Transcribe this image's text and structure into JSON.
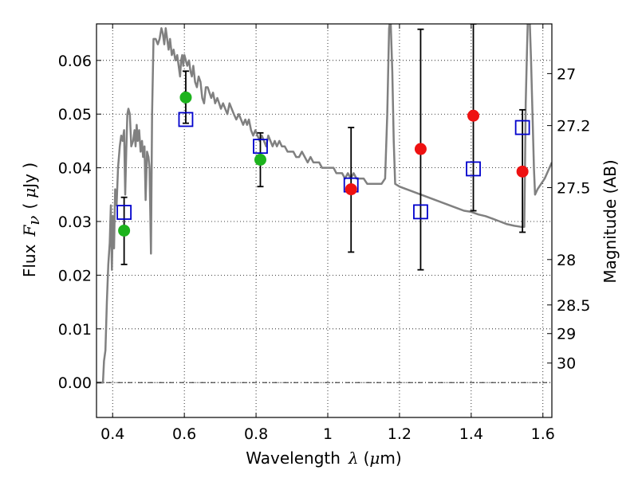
{
  "chart_data": {
    "type": "scatter",
    "xlabel": "Wavelength",
    "xlabel_symbol": "λ",
    "xlabel_unit_open": "(",
    "xlabel_unit_mu": "μ",
    "xlabel_unit_rest": "m)",
    "ylabel": "Flux",
    "ylabel_symbol": "F",
    "ylabel_sub": "ν",
    "ylabel_unit_open": "(",
    "ylabel_unit_mu": "μ",
    "ylabel_unit_rest": "Jy )",
    "y2label": "Magnitude (AB)",
    "xlim": [
      0.355,
      1.625
    ],
    "ylim": [
      -0.0065,
      0.0668
    ],
    "grid": true,
    "x_ticks": [
      {
        "v": 0.4,
        "label": "0.4"
      },
      {
        "v": 0.6,
        "label": "0.6"
      },
      {
        "v": 0.8,
        "label": "0.8"
      },
      {
        "v": 1.0,
        "label": "1"
      },
      {
        "v": 1.2,
        "label": "1.2"
      },
      {
        "v": 1.4,
        "label": "1.4"
      },
      {
        "v": 1.6,
        "label": "1.6"
      }
    ],
    "y_ticks": [
      {
        "v": 0.0,
        "label": "0.00"
      },
      {
        "v": 0.01,
        "label": "0.01"
      },
      {
        "v": 0.02,
        "label": "0.02"
      },
      {
        "v": 0.03,
        "label": "0.03"
      },
      {
        "v": 0.04,
        "label": "0.04"
      },
      {
        "v": 0.05,
        "label": "0.05"
      },
      {
        "v": 0.06,
        "label": "0.06"
      }
    ],
    "y2_ticks": [
      {
        "mag": 27,
        "label": "27"
      },
      {
        "mag": 27.2,
        "label": "27.2"
      },
      {
        "mag": 27.5,
        "label": "27.5"
      },
      {
        "mag": 28,
        "label": "28"
      },
      {
        "mag": 28.5,
        "label": "28.5"
      },
      {
        "mag": 29,
        "label": "29"
      },
      {
        "mag": 30,
        "label": "30"
      }
    ],
    "series": [
      {
        "type": "line",
        "color": "#808080",
        "points": [
          [
            0.355,
            0.0
          ],
          [
            0.373,
            0.0
          ],
          [
            0.376,
            0.004
          ],
          [
            0.38,
            0.006
          ],
          [
            0.384,
            0.015
          ],
          [
            0.388,
            0.022
          ],
          [
            0.392,
            0.026
          ],
          [
            0.395,
            0.033
          ],
          [
            0.398,
            0.021
          ],
          [
            0.401,
            0.031
          ],
          [
            0.404,
            0.025
          ],
          [
            0.407,
            0.036
          ],
          [
            0.411,
            0.033
          ],
          [
            0.415,
            0.04
          ],
          [
            0.42,
            0.044
          ],
          [
            0.424,
            0.046
          ],
          [
            0.428,
            0.045
          ],
          [
            0.432,
            0.047
          ],
          [
            0.435,
            0.035
          ],
          [
            0.438,
            0.043
          ],
          [
            0.441,
            0.05
          ],
          [
            0.444,
            0.051
          ],
          [
            0.448,
            0.05
          ],
          [
            0.452,
            0.044
          ],
          [
            0.457,
            0.045
          ],
          [
            0.461,
            0.047
          ],
          [
            0.464,
            0.044
          ],
          [
            0.467,
            0.048
          ],
          [
            0.47,
            0.045
          ],
          [
            0.474,
            0.047
          ],
          [
            0.478,
            0.043
          ],
          [
            0.482,
            0.045
          ],
          [
            0.485,
            0.042
          ],
          [
            0.489,
            0.044
          ],
          [
            0.492,
            0.034
          ],
          [
            0.496,
            0.043
          ],
          [
            0.5,
            0.042
          ],
          [
            0.503,
            0.04
          ],
          [
            0.507,
            0.024
          ],
          [
            0.51,
            0.05
          ],
          [
            0.514,
            0.064
          ],
          [
            0.52,
            0.064
          ],
          [
            0.526,
            0.063
          ],
          [
            0.531,
            0.064
          ],
          [
            0.536,
            0.066
          ],
          [
            0.54,
            0.065
          ],
          [
            0.544,
            0.063
          ],
          [
            0.548,
            0.066
          ],
          [
            0.552,
            0.064
          ],
          [
            0.556,
            0.062
          ],
          [
            0.56,
            0.064
          ],
          [
            0.565,
            0.061
          ],
          [
            0.57,
            0.062
          ],
          [
            0.575,
            0.06
          ],
          [
            0.58,
            0.061
          ],
          [
            0.584,
            0.059
          ],
          [
            0.588,
            0.057
          ],
          [
            0.591,
            0.06
          ],
          [
            0.594,
            0.061
          ],
          [
            0.597,
            0.059
          ],
          [
            0.6,
            0.061
          ],
          [
            0.604,
            0.06
          ],
          [
            0.608,
            0.059
          ],
          [
            0.613,
            0.06
          ],
          [
            0.617,
            0.058
          ],
          [
            0.621,
            0.057
          ],
          [
            0.625,
            0.059
          ],
          [
            0.63,
            0.056
          ],
          [
            0.635,
            0.055
          ],
          [
            0.64,
            0.057
          ],
          [
            0.645,
            0.056
          ],
          [
            0.65,
            0.053
          ],
          [
            0.655,
            0.052
          ],
          [
            0.66,
            0.055
          ],
          [
            0.665,
            0.055
          ],
          [
            0.67,
            0.054
          ],
          [
            0.675,
            0.053
          ],
          [
            0.68,
            0.054
          ],
          [
            0.686,
            0.052
          ],
          [
            0.692,
            0.053
          ],
          [
            0.697,
            0.052
          ],
          [
            0.702,
            0.051
          ],
          [
            0.708,
            0.052
          ],
          [
            0.714,
            0.051
          ],
          [
            0.72,
            0.05
          ],
          [
            0.726,
            0.052
          ],
          [
            0.732,
            0.051
          ],
          [
            0.738,
            0.05
          ],
          [
            0.745,
            0.049
          ],
          [
            0.752,
            0.05
          ],
          [
            0.758,
            0.049
          ],
          [
            0.764,
            0.048
          ],
          [
            0.77,
            0.049
          ],
          [
            0.775,
            0.048
          ],
          [
            0.78,
            0.049
          ],
          [
            0.786,
            0.047
          ],
          [
            0.792,
            0.046
          ],
          [
            0.798,
            0.047
          ],
          [
            0.804,
            0.046
          ],
          [
            0.81,
            0.045
          ],
          [
            0.816,
            0.046
          ],
          [
            0.822,
            0.045
          ],
          [
            0.828,
            0.044
          ],
          [
            0.834,
            0.046
          ],
          [
            0.84,
            0.045
          ],
          [
            0.846,
            0.044
          ],
          [
            0.852,
            0.045
          ],
          [
            0.858,
            0.044
          ],
          [
            0.865,
            0.045
          ],
          [
            0.872,
            0.044
          ],
          [
            0.88,
            0.044
          ],
          [
            0.888,
            0.043
          ],
          [
            0.896,
            0.043
          ],
          [
            0.904,
            0.043
          ],
          [
            0.912,
            0.042
          ],
          [
            0.92,
            0.042
          ],
          [
            0.928,
            0.043
          ],
          [
            0.936,
            0.042
          ],
          [
            0.944,
            0.041
          ],
          [
            0.952,
            0.042
          ],
          [
            0.96,
            0.041
          ],
          [
            0.968,
            0.041
          ],
          [
            0.976,
            0.041
          ],
          [
            0.984,
            0.04
          ],
          [
            0.992,
            0.04
          ],
          [
            1.0,
            0.04
          ],
          [
            1.008,
            0.04
          ],
          [
            1.016,
            0.04
          ],
          [
            1.024,
            0.039
          ],
          [
            1.032,
            0.039
          ],
          [
            1.04,
            0.039
          ],
          [
            1.048,
            0.038
          ],
          [
            1.056,
            0.039
          ],
          [
            1.064,
            0.038
          ],
          [
            1.072,
            0.039
          ],
          [
            1.08,
            0.038
          ],
          [
            1.09,
            0.038
          ],
          [
            1.1,
            0.038
          ],
          [
            1.11,
            0.037
          ],
          [
            1.12,
            0.037
          ],
          [
            1.13,
            0.037
          ],
          [
            1.14,
            0.037
          ],
          [
            1.15,
            0.037
          ],
          [
            1.16,
            0.038
          ],
          [
            1.166,
            0.05
          ],
          [
            1.171,
            0.066
          ],
          [
            1.175,
            0.068
          ],
          [
            1.18,
            0.058
          ],
          [
            1.184,
            0.045
          ],
          [
            1.188,
            0.037
          ],
          [
            1.2,
            0.0365
          ],
          [
            1.22,
            0.036
          ],
          [
            1.24,
            0.0355
          ],
          [
            1.26,
            0.035
          ],
          [
            1.28,
            0.0345
          ],
          [
            1.3,
            0.034
          ],
          [
            1.32,
            0.0335
          ],
          [
            1.34,
            0.033
          ],
          [
            1.36,
            0.0325
          ],
          [
            1.38,
            0.032
          ],
          [
            1.4,
            0.0318
          ],
          [
            1.42,
            0.0313
          ],
          [
            1.44,
            0.031
          ],
          [
            1.46,
            0.0305
          ],
          [
            1.48,
            0.03
          ],
          [
            1.5,
            0.0295
          ],
          [
            1.52,
            0.0292
          ],
          [
            1.54,
            0.029
          ],
          [
            1.548,
            0.029
          ],
          [
            1.55,
            0.04
          ],
          [
            1.552,
            0.052
          ],
          [
            1.555,
            0.06
          ],
          [
            1.558,
            0.068
          ],
          [
            1.563,
            0.068
          ],
          [
            1.567,
            0.06
          ],
          [
            1.571,
            0.05
          ],
          [
            1.575,
            0.04
          ],
          [
            1.578,
            0.035
          ],
          [
            1.585,
            0.036
          ],
          [
            1.595,
            0.037
          ],
          [
            1.605,
            0.038
          ],
          [
            1.615,
            0.0395
          ],
          [
            1.625,
            0.041
          ]
        ]
      },
      {
        "type": "errorbar",
        "color": "#000000",
        "points": [
          {
            "x": 0.432,
            "y": 0.0317,
            "low": 0.022,
            "high": 0.0345
          },
          {
            "x": 0.604,
            "y": 0.049,
            "low": 0.0483,
            "high": 0.058
          },
          {
            "x": 0.812,
            "y": 0.044,
            "low": 0.0365,
            "high": 0.0465
          },
          {
            "x": 1.065,
            "y": 0.0368,
            "low": 0.0243,
            "high": 0.0475
          },
          {
            "x": 1.259,
            "y": 0.0318,
            "low": 0.021,
            "high": 0.0658
          },
          {
            "x": 1.406,
            "y": 0.0398,
            "low": 0.032,
            "high": 0.0668
          },
          {
            "x": 1.543,
            "y": 0.0475,
            "low": 0.028,
            "high": 0.0508
          }
        ]
      },
      {
        "type": "scatter",
        "marker": "square-open",
        "color": "#0000cc",
        "points": [
          [
            0.432,
            0.0317
          ],
          [
            0.604,
            0.049
          ],
          [
            0.812,
            0.044
          ],
          [
            1.065,
            0.0368
          ],
          [
            1.259,
            0.0318
          ],
          [
            1.406,
            0.0398
          ],
          [
            1.543,
            0.0475
          ]
        ]
      },
      {
        "type": "scatter",
        "marker": "circle",
        "color": "#1db31d",
        "points": [
          [
            0.432,
            0.0283
          ],
          [
            0.604,
            0.0531
          ],
          [
            0.812,
            0.0415
          ]
        ]
      },
      {
        "type": "scatter",
        "marker": "circle",
        "color": "#ee1111",
        "points": [
          [
            1.065,
            0.036
          ],
          [
            1.259,
            0.0435
          ],
          [
            1.406,
            0.0497
          ],
          [
            1.543,
            0.0393
          ]
        ]
      }
    ]
  }
}
